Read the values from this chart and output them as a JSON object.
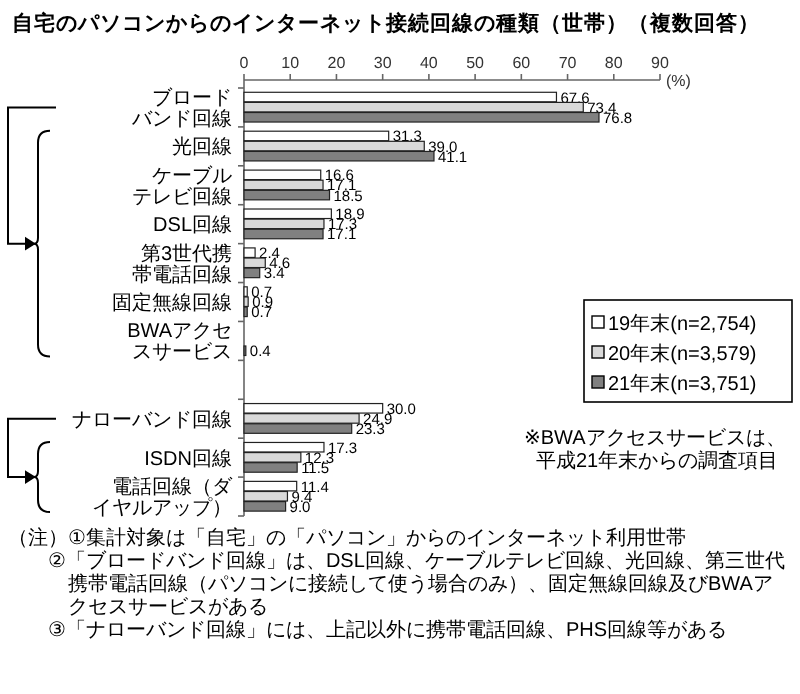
{
  "chart_data": {
    "type": "bar",
    "orientation": "horizontal",
    "title": "自宅のパソコンからのインターネット接続回線の種類（世帯）（複数回答）",
    "categories": [
      "ブロードバンド回線",
      "光回線",
      "ケーブルテレビ回線",
      "DSL回線",
      "第3世代携帯電話回線",
      "固定無線回線",
      "BWAアクセスサービス",
      null,
      "ナローバンド回線",
      "ISDN回線",
      "電話回線（ダイヤルアップ）"
    ],
    "series": [
      {
        "name": "19年末(n=2,754)",
        "color": "#ffffff",
        "values": [
          67.6,
          31.3,
          16.6,
          18.9,
          2.4,
          0.7,
          null,
          null,
          30.0,
          17.3,
          11.4
        ],
        "value_labels": [
          "67.6",
          "31.3",
          "16.6",
          "18.9",
          "2.4",
          "0.7",
          null,
          null,
          "30.0",
          "17.3",
          "11.4"
        ]
      },
      {
        "name": "20年末(n=3,579)",
        "color": "#d9d9d9",
        "values": [
          73.4,
          39.0,
          17.1,
          17.3,
          4.6,
          0.9,
          null,
          null,
          24.9,
          12.3,
          9.4
        ],
        "value_labels": [
          "73.4",
          "39.0",
          "17.1",
          "17.3",
          "4.6",
          "0.9",
          null,
          null,
          "24.9",
          "12.3",
          "9.4"
        ]
      },
      {
        "name": "21年末(n=3,751)",
        "color": "#808080",
        "values": [
          76.8,
          41.1,
          18.5,
          17.1,
          3.4,
          0.7,
          0.4,
          null,
          23.3,
          11.5,
          9.0
        ],
        "value_labels": [
          "76.8",
          "41.1",
          "18.5",
          "17.1",
          "3.4",
          "0.7",
          "0.4",
          null,
          "23.3",
          "11.5",
          "9.0"
        ]
      }
    ],
    "xlim": [
      0,
      90
    ],
    "xticks": [
      0,
      10,
      20,
      30,
      40,
      50,
      60,
      70,
      80,
      90
    ],
    "xlabel": "(%)",
    "legend": "right",
    "grid": false,
    "annotations": [
      "※BWAアクセスサービスは、平成21年末からの調査項目",
      "（注）①集計対象は「自宅」の「パソコン」からのインターネット利用世帯",
      "②「ブロードバンド回線」は、DSL回線、ケーブルテレビ回線、光回線、第三世代携帯電話回線（パソコンに接続して使う場合のみ）、固定無線回線及びBWAアクセスサービスがある",
      "③「ナローバンド回線」には、上記以外に携帯電話回線、PHS回線等がある"
    ]
  }
}
